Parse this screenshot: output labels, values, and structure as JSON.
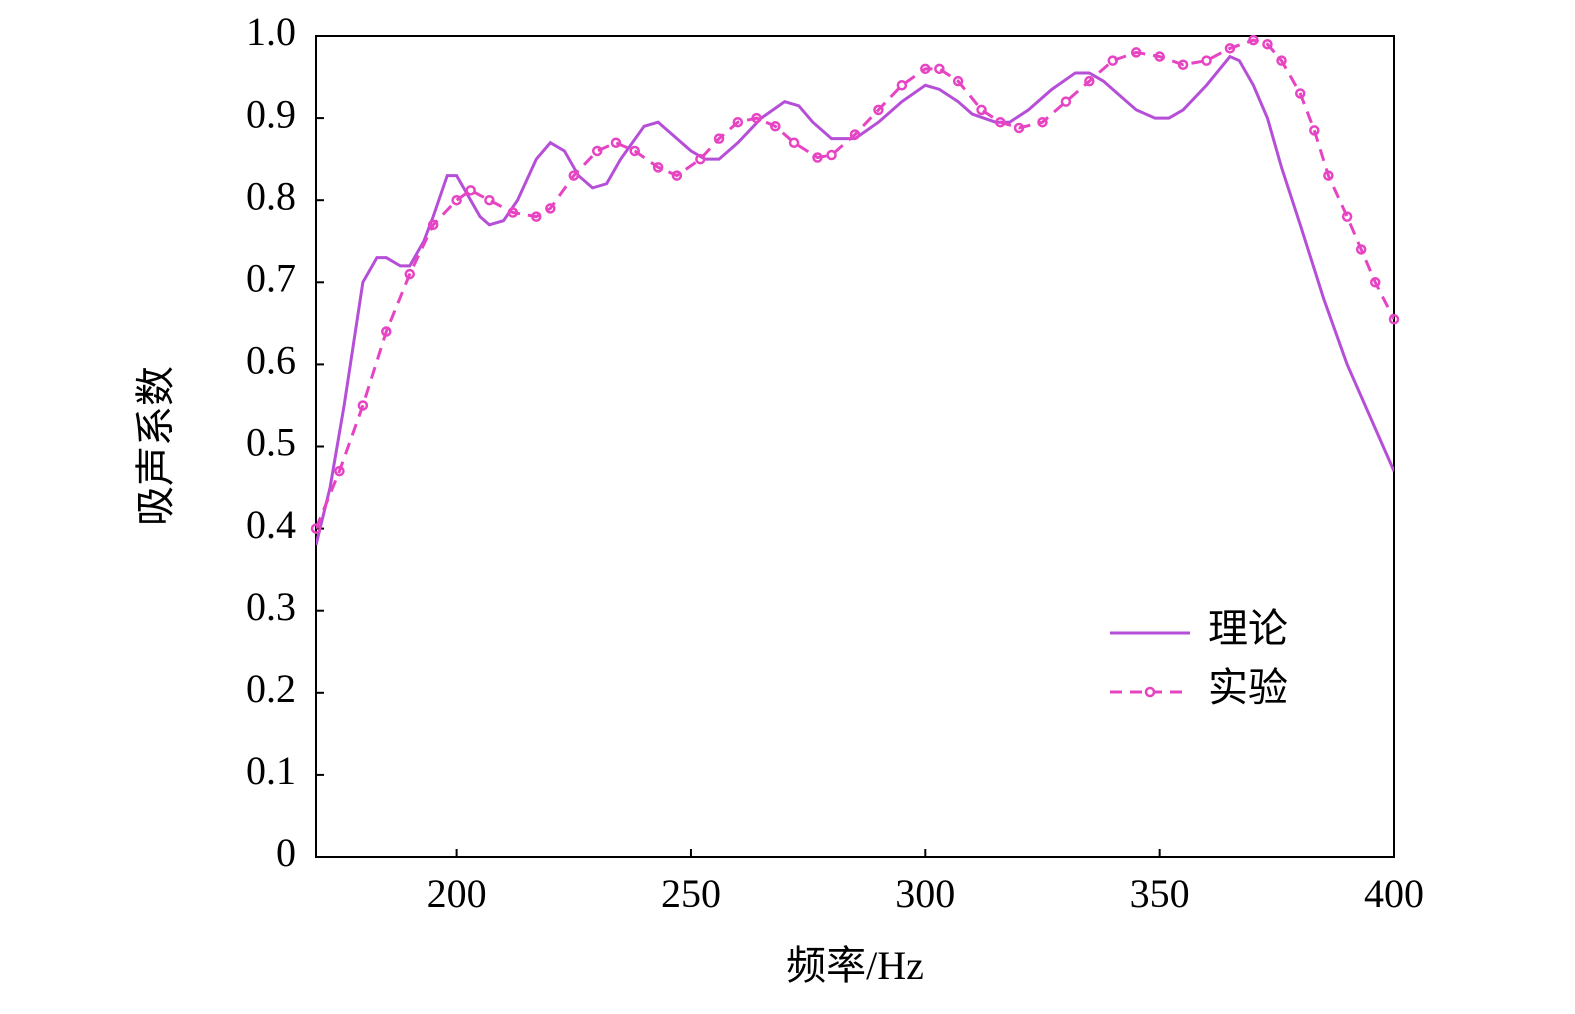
{
  "chart_data": {
    "type": "line",
    "x_label": "频率/Hz",
    "y_label": "吸声系数",
    "xlim": [
      170,
      400
    ],
    "xticks": [
      200,
      250,
      300,
      350,
      400
    ],
    "ylim": [
      0,
      1
    ],
    "yticks": [
      0,
      0.1,
      0.2,
      0.3,
      0.4,
      0.5,
      0.6,
      0.7,
      0.8,
      0.9,
      {
        "value": 1,
        "label": "1.0"
      }
    ],
    "legend_position": "lower right",
    "series": [
      {
        "name": "理论",
        "color": "#b64fd8",
        "style": "solid",
        "marker": false,
        "x": [
          170,
          173,
          176,
          180,
          183,
          185,
          188,
          190,
          193,
          195,
          198,
          200,
          202,
          205,
          207,
          210,
          213,
          217,
          220,
          223,
          226,
          229,
          232,
          235,
          240,
          243,
          246,
          250,
          253,
          256,
          260,
          265,
          270,
          273,
          276,
          280,
          285,
          290,
          295,
          300,
          303,
          307,
          310,
          315,
          318,
          322,
          327,
          332,
          335,
          338,
          341,
          345,
          349,
          352,
          355,
          360,
          365,
          367,
          370,
          373,
          376,
          380,
          385,
          390,
          395,
          400
        ],
        "values": [
          0.38,
          0.45,
          0.55,
          0.7,
          0.73,
          0.73,
          0.72,
          0.72,
          0.75,
          0.78,
          0.83,
          0.83,
          0.81,
          0.78,
          0.77,
          0.775,
          0.8,
          0.85,
          0.87,
          0.86,
          0.83,
          0.815,
          0.82,
          0.85,
          0.89,
          0.895,
          0.88,
          0.86,
          0.85,
          0.85,
          0.87,
          0.9,
          0.92,
          0.915,
          0.895,
          0.875,
          0.875,
          0.895,
          0.92,
          0.94,
          0.935,
          0.92,
          0.905,
          0.895,
          0.895,
          0.91,
          0.935,
          0.955,
          0.955,
          0.945,
          0.93,
          0.91,
          0.9,
          0.9,
          0.91,
          0.94,
          0.975,
          0.97,
          0.94,
          0.9,
          0.84,
          0.77,
          0.68,
          0.6,
          0.535,
          0.47
        ]
      },
      {
        "name": "实验",
        "color": "#e744c3",
        "style": "dashed",
        "marker": true,
        "x": [
          170,
          175,
          180,
          185,
          190,
          195,
          200,
          203,
          207,
          212,
          217,
          220,
          225,
          230,
          234,
          238,
          243,
          247,
          252,
          256,
          260,
          264,
          268,
          272,
          277,
          280,
          285,
          290,
          295,
          300,
          303,
          307,
          312,
          316,
          320,
          325,
          330,
          335,
          340,
          345,
          350,
          355,
          360,
          365,
          370,
          373,
          376,
          380,
          383,
          386,
          390,
          393,
          396,
          400
        ],
        "values": [
          0.4,
          0.47,
          0.55,
          0.64,
          0.71,
          0.77,
          0.8,
          0.812,
          0.8,
          0.785,
          0.78,
          0.79,
          0.83,
          0.86,
          0.87,
          0.86,
          0.84,
          0.83,
          0.85,
          0.875,
          0.895,
          0.9,
          0.89,
          0.87,
          0.852,
          0.855,
          0.88,
          0.91,
          0.94,
          0.96,
          0.96,
          0.945,
          0.91,
          0.895,
          0.888,
          0.895,
          0.92,
          0.945,
          0.97,
          0.98,
          0.975,
          0.965,
          0.97,
          0.985,
          0.995,
          0.99,
          0.97,
          0.93,
          0.885,
          0.83,
          0.78,
          0.74,
          0.7,
          0.655
        ]
      }
    ]
  }
}
